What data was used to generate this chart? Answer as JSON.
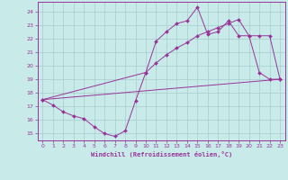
{
  "bg_color": "#c8eae8",
  "grid_color": "#a8cccc",
  "line_color": "#993399",
  "xlabel": "Windchill (Refroidissement éolien,°C)",
  "xlim": [
    -0.5,
    23.5
  ],
  "ylim": [
    14.5,
    24.7
  ],
  "yticks": [
    15,
    16,
    17,
    18,
    19,
    20,
    21,
    22,
    23,
    24
  ],
  "xticks": [
    0,
    1,
    2,
    3,
    4,
    5,
    6,
    7,
    8,
    9,
    10,
    11,
    12,
    13,
    14,
    15,
    16,
    17,
    18,
    19,
    20,
    21,
    22,
    23
  ],
  "series": [
    {
      "x": [
        0,
        1,
        2,
        3,
        4,
        5,
        6,
        7,
        8,
        9,
        10,
        11,
        12,
        13,
        14,
        15,
        16,
        17,
        18,
        19,
        20,
        21,
        22,
        23
      ],
      "y": [
        17.5,
        17.1,
        16.6,
        16.3,
        16.1,
        15.5,
        15.0,
        14.8,
        15.2,
        17.4,
        19.5,
        21.8,
        22.5,
        23.1,
        23.3,
        24.3,
        22.3,
        22.5,
        23.3,
        22.2,
        22.2,
        19.5,
        19.0,
        19.0
      ],
      "marker": true
    },
    {
      "x": [
        0,
        10,
        11,
        12,
        13,
        14,
        15,
        16,
        17,
        18,
        19,
        20,
        21,
        22,
        23
      ],
      "y": [
        17.5,
        19.5,
        20.2,
        20.8,
        21.3,
        21.7,
        22.2,
        22.5,
        22.8,
        23.1,
        23.4,
        22.2,
        22.2,
        22.2,
        19.0
      ],
      "marker": true
    },
    {
      "x": [
        0,
        23
      ],
      "y": [
        17.5,
        19.0
      ],
      "marker": false
    }
  ]
}
